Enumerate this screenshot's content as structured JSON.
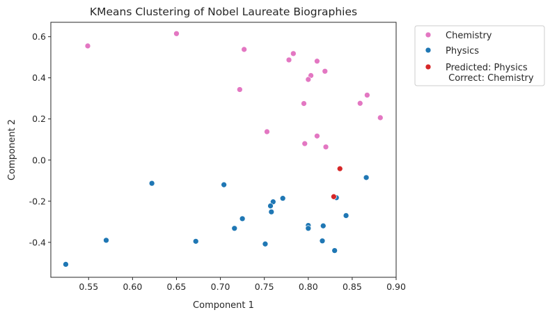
{
  "chart_data": {
    "type": "scatter",
    "title": "KMeans Clustering of Nobel Laureate Biographies",
    "xlabel": "Component 1",
    "ylabel": "Component 2",
    "xlim": [
      0.507,
      0.9
    ],
    "ylim": [
      -0.57,
      0.67
    ],
    "xticks": [
      "0.55",
      "0.60",
      "0.65",
      "0.70",
      "0.75",
      "0.80",
      "0.85",
      "0.90"
    ],
    "yticks": [
      "-0.4",
      "-0.2",
      "0.0",
      "0.2",
      "0.4",
      "0.6"
    ],
    "grid": false,
    "legend_position": "outside-upper-right",
    "series": [
      {
        "name": "Chemistry",
        "color": "#e377c2",
        "points": [
          [
            0.65,
            0.615
          ],
          [
            0.549,
            0.555
          ],
          [
            0.727,
            0.538
          ],
          [
            0.783,
            0.518
          ],
          [
            0.778,
            0.487
          ],
          [
            0.81,
            0.481
          ],
          [
            0.819,
            0.432
          ],
          [
            0.803,
            0.411
          ],
          [
            0.8,
            0.392
          ],
          [
            0.722,
            0.343
          ],
          [
            0.867,
            0.316
          ],
          [
            0.795,
            0.275
          ],
          [
            0.859,
            0.276
          ],
          [
            0.882,
            0.206
          ],
          [
            0.753,
            0.138
          ],
          [
            0.81,
            0.117
          ],
          [
            0.796,
            0.08
          ],
          [
            0.82,
            0.064
          ]
        ]
      },
      {
        "name": "Physics",
        "color": "#1f77b4",
        "points": [
          [
            0.622,
            -0.113
          ],
          [
            0.704,
            -0.12
          ],
          [
            0.866,
            -0.085
          ],
          [
            0.771,
            -0.186
          ],
          [
            0.832,
            -0.183
          ],
          [
            0.76,
            -0.203
          ],
          [
            0.757,
            -0.223
          ],
          [
            0.758,
            -0.252
          ],
          [
            0.725,
            -0.285
          ],
          [
            0.843,
            -0.27
          ],
          [
            0.716,
            -0.332
          ],
          [
            0.8,
            -0.318
          ],
          [
            0.8,
            -0.332
          ],
          [
            0.817,
            -0.32
          ],
          [
            0.57,
            -0.39
          ],
          [
            0.672,
            -0.395
          ],
          [
            0.751,
            -0.408
          ],
          [
            0.816,
            -0.393
          ],
          [
            0.83,
            -0.44
          ],
          [
            0.524,
            -0.507
          ]
        ]
      },
      {
        "name": "Predicted: Physics\n Correct: Chemistry",
        "color": "#d62728",
        "points": [
          [
            0.836,
            -0.042
          ],
          [
            0.829,
            -0.178
          ]
        ]
      }
    ]
  }
}
